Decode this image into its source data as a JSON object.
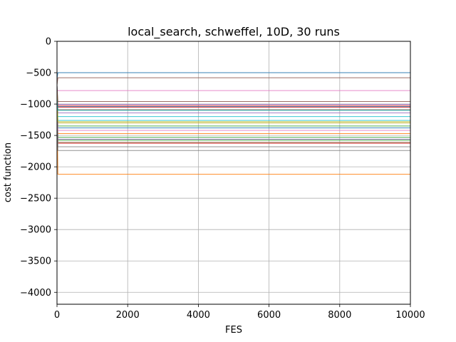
{
  "chart_data": {
    "type": "line",
    "title": "local_search, schweffel, 10D, 30 runs",
    "xlabel": "FES",
    "ylabel": "cost function",
    "xlim": [
      0,
      10000
    ],
    "ylim": [
      -4190,
      0
    ],
    "xticks": [
      0,
      2000,
      4000,
      6000,
      8000,
      10000
    ],
    "xtick_labels": [
      "0",
      "2000",
      "4000",
      "6000",
      "8000",
      "10000"
    ],
    "yticks": [
      0,
      -500,
      -1000,
      -1500,
      -2000,
      -2500,
      -3000,
      -3500,
      -4000
    ],
    "ytick_labels": [
      "0",
      "−500",
      "−1000",
      "−1500",
      "−2000",
      "−2500",
      "−3000",
      "−3500",
      "−4000"
    ],
    "grid": true,
    "legend": "none",
    "colors": [
      "#1f77b4",
      "#ff7f0e",
      "#2ca02c",
      "#d62728",
      "#9467bd",
      "#8c564b",
      "#e377c2",
      "#7f7f7f",
      "#bcbd22",
      "#17becf"
    ],
    "series": [
      {
        "start": -600,
        "final": -500
      },
      {
        "start": -900,
        "final": -2118
      },
      {
        "start": -800,
        "final": -1575
      },
      {
        "start": -700,
        "final": -1625
      },
      {
        "start": -900,
        "final": -1005
      },
      {
        "start": -700,
        "final": -580
      },
      {
        "start": -800,
        "final": -785
      },
      {
        "start": -900,
        "final": -1740
      },
      {
        "start": -800,
        "final": -1095
      },
      {
        "start": -900,
        "final": -1200
      },
      {
        "start": -700,
        "final": -1040
      },
      {
        "start": -800,
        "final": -1610
      },
      {
        "start": -900,
        "final": -1530
      },
      {
        "start": -800,
        "final": -1025
      },
      {
        "start": -900,
        "final": -1140
      },
      {
        "start": -700,
        "final": -1090
      },
      {
        "start": -800,
        "final": -1300
      },
      {
        "start": -900,
        "final": -1610
      },
      {
        "start": -800,
        "final": -1300
      },
      {
        "start": -900,
        "final": -1260
      },
      {
        "start": -700,
        "final": -1380
      },
      {
        "start": -800,
        "final": -1470
      },
      {
        "start": -900,
        "final": -1350
      },
      {
        "start": -800,
        "final": -1050
      },
      {
        "start": -900,
        "final": -1560
      },
      {
        "start": -700,
        "final": -960
      },
      {
        "start": -800,
        "final": -1420
      },
      {
        "start": -900,
        "final": -1680
      },
      {
        "start": -800,
        "final": -1280
      },
      {
        "start": -900,
        "final": -1100
      }
    ]
  }
}
